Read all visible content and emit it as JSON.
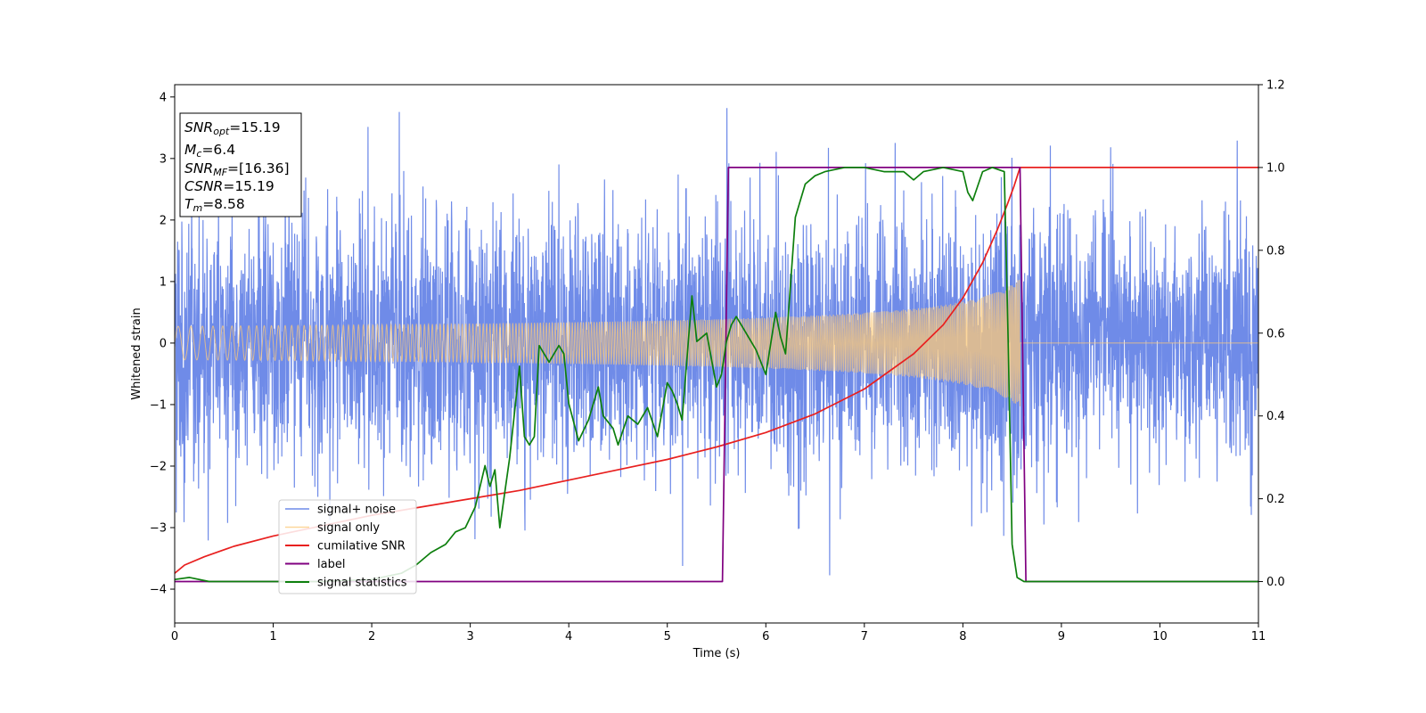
{
  "chart_data": {
    "type": "line",
    "title": "",
    "xlabel": "Time (s)",
    "ylabel": "Whitened strain",
    "y2label": "",
    "xlim": [
      0,
      11
    ],
    "ylim": [
      -4.55,
      4.2
    ],
    "y2lim": [
      -0.1,
      1.2
    ],
    "xticks": [
      0,
      1,
      2,
      3,
      4,
      5,
      6,
      7,
      8,
      9,
      10,
      11
    ],
    "yticks": [
      -4,
      -3,
      -2,
      -1,
      0,
      1,
      2,
      3,
      4
    ],
    "y2ticks": [
      0.0,
      0.2,
      0.4,
      0.6,
      0.8,
      1.0,
      1.2
    ],
    "grid": false,
    "legend_position": "lower-left",
    "info_box": {
      "position": "top-left",
      "entries": [
        {
          "symbol": "SNR",
          "subscript": "opt",
          "value": "=15.19"
        },
        {
          "symbol": "M",
          "subscript": "c",
          "value": "=6.4"
        },
        {
          "symbol": "SNR",
          "subscript": "MF",
          "value": "=[16.36]"
        },
        {
          "symbol": "CSNR",
          "subscript": "",
          "value": "=15.19"
        },
        {
          "symbol": "T",
          "subscript": "m",
          "value": "=8.58"
        }
      ]
    },
    "series": [
      {
        "name": "signal+ noise",
        "color": "#6f8be8",
        "axis": "left",
        "kind": "noise",
        "sigma": 1.0,
        "amplitude_range": [
          -4.15,
          3.82
        ]
      },
      {
        "name": "signal only",
        "color": "#fcc97a",
        "axis": "left",
        "kind": "chirp",
        "start_amplitude": 0.08,
        "end_amplitude": 1.05,
        "end_time": 8.58
      },
      {
        "name": "cumilative SNR",
        "color": "#e8201f",
        "axis": "right",
        "x": [
          0,
          0.1,
          0.3,
          0.6,
          1.0,
          1.5,
          2.0,
          2.5,
          3.0,
          3.5,
          4.0,
          4.5,
          5.0,
          5.5,
          6.0,
          6.5,
          7.0,
          7.5,
          7.8,
          8.0,
          8.2,
          8.35,
          8.45,
          8.52,
          8.58,
          11.0
        ],
        "y": [
          0.02,
          0.04,
          0.06,
          0.085,
          0.11,
          0.135,
          0.16,
          0.18,
          0.2,
          0.22,
          0.245,
          0.27,
          0.295,
          0.325,
          0.36,
          0.405,
          0.465,
          0.55,
          0.62,
          0.685,
          0.77,
          0.85,
          0.91,
          0.955,
          1.0,
          1.0
        ]
      },
      {
        "name": "label",
        "color": "#800080",
        "axis": "right",
        "x": [
          0,
          5.56,
          5.62,
          8.58,
          8.64,
          11.0
        ],
        "y": [
          0,
          0,
          1,
          1,
          0,
          0
        ]
      },
      {
        "name": "signal statistics",
        "color": "#0d7f0d",
        "axis": "right",
        "x": [
          0,
          0.15,
          0.35,
          0.6,
          1.0,
          1.5,
          2.0,
          2.3,
          2.45,
          2.6,
          2.75,
          2.85,
          2.95,
          3.05,
          3.15,
          3.2,
          3.25,
          3.3,
          3.4,
          3.5,
          3.55,
          3.6,
          3.65,
          3.7,
          3.8,
          3.9,
          3.95,
          4.0,
          4.1,
          4.2,
          4.3,
          4.35,
          4.45,
          4.5,
          4.6,
          4.7,
          4.8,
          4.9,
          5.0,
          5.05,
          5.1,
          5.15,
          5.25,
          5.3,
          5.4,
          5.5,
          5.55,
          5.6,
          5.65,
          5.7,
          5.8,
          5.9,
          6.0,
          6.1,
          6.15,
          6.2,
          6.3,
          6.4,
          6.5,
          6.6,
          6.8,
          7.0,
          7.2,
          7.4,
          7.5,
          7.6,
          7.8,
          8.0,
          8.05,
          8.1,
          8.2,
          8.3,
          8.42,
          8.46,
          8.5,
          8.55,
          8.62,
          8.7,
          9.0,
          11.0
        ],
        "y": [
          0.005,
          0.01,
          0.0,
          0.0,
          0.0,
          0.0,
          0.005,
          0.02,
          0.04,
          0.07,
          0.09,
          0.12,
          0.13,
          0.18,
          0.28,
          0.23,
          0.27,
          0.13,
          0.3,
          0.52,
          0.35,
          0.33,
          0.35,
          0.57,
          0.53,
          0.57,
          0.55,
          0.43,
          0.34,
          0.39,
          0.47,
          0.4,
          0.37,
          0.33,
          0.4,
          0.38,
          0.42,
          0.35,
          0.48,
          0.46,
          0.43,
          0.39,
          0.69,
          0.58,
          0.6,
          0.47,
          0.5,
          0.58,
          0.62,
          0.64,
          0.6,
          0.56,
          0.5,
          0.65,
          0.59,
          0.55,
          0.88,
          0.96,
          0.98,
          0.99,
          1.0,
          1.0,
          0.99,
          0.99,
          0.97,
          0.99,
          1.0,
          0.99,
          0.94,
          0.92,
          0.99,
          1.0,
          0.99,
          0.58,
          0.09,
          0.01,
          0.0,
          0.0,
          0.0,
          0.0
        ]
      }
    ]
  }
}
